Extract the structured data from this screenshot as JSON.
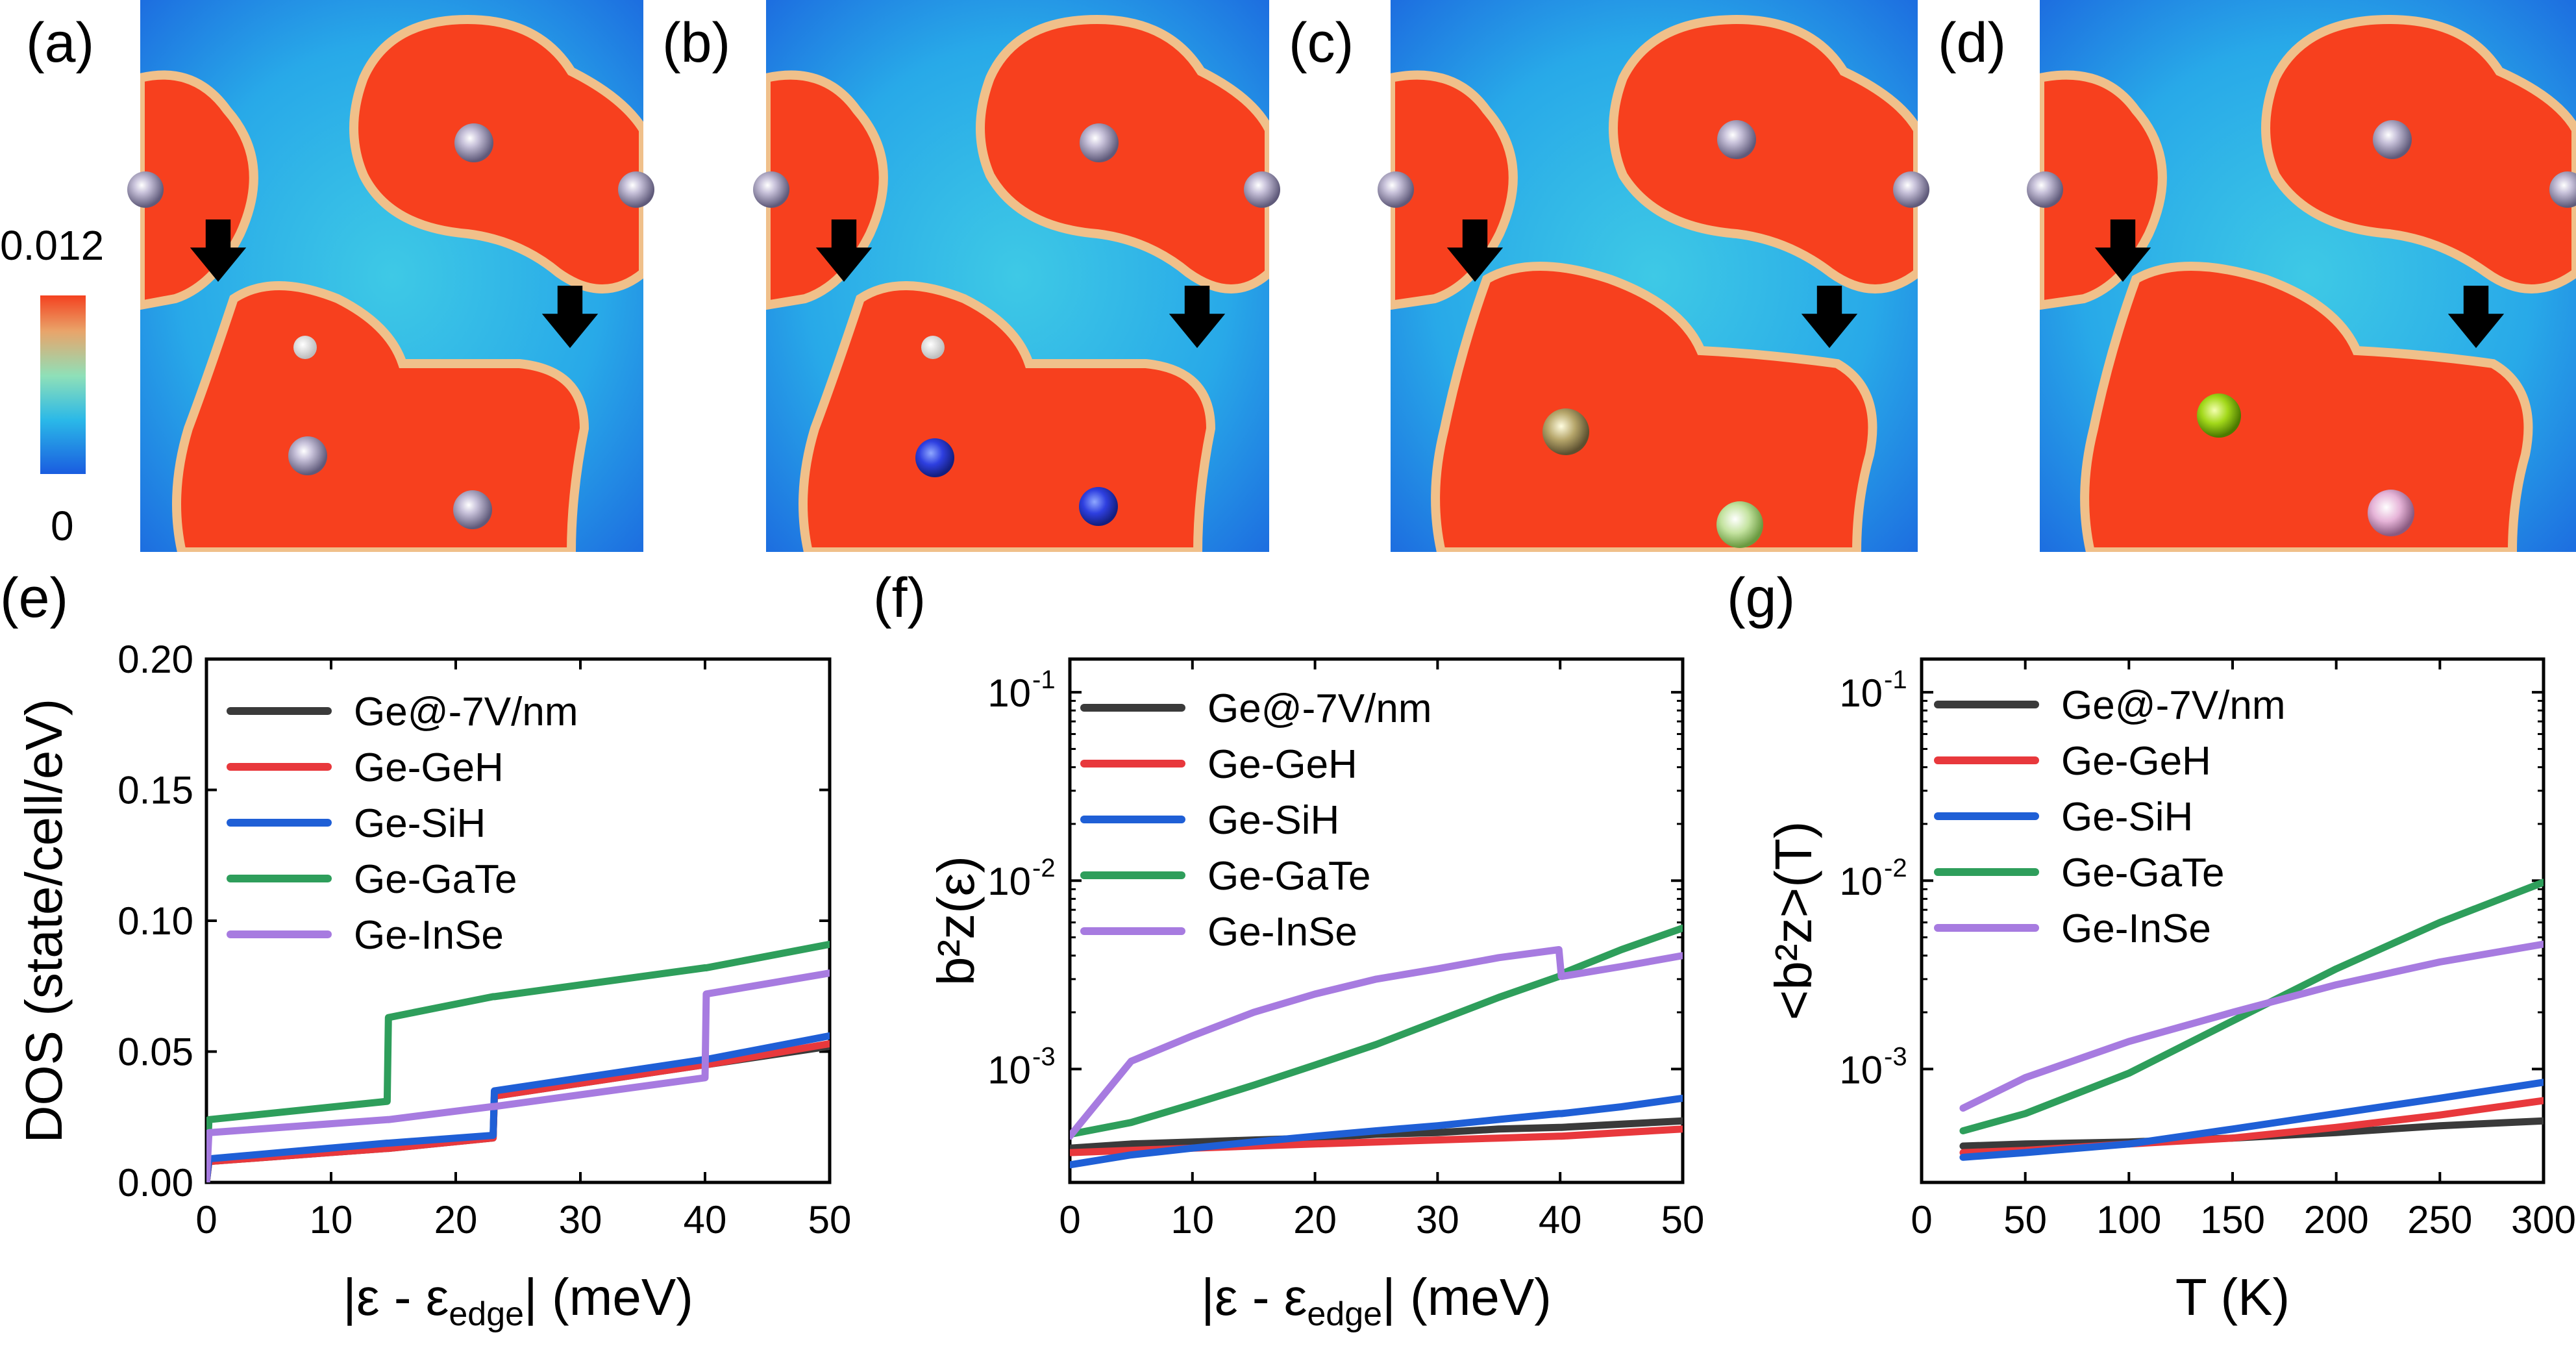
{
  "figure": {
    "maps": [
      {
        "label": "(a)"
      },
      {
        "label": "(b)"
      },
      {
        "label": "(c)"
      },
      {
        "label": "(d)"
      }
    ],
    "colorbar": {
      "max_label": "0.012",
      "min_label": "0"
    }
  },
  "chart_data": [
    {
      "type": "line",
      "panel_label": "(e)",
      "ylabel": "DOS (state/cell/eV)",
      "xlabel_parts": [
        "|ε - ε",
        "edge",
        "| (meV)"
      ],
      "xlim": [
        0,
        50
      ],
      "ylim": [
        0,
        0.2
      ],
      "xticks": [
        "0",
        "10",
        "20",
        "30",
        "40",
        "50"
      ],
      "yticks": [
        "0.00",
        "0.05",
        "0.10",
        "0.15",
        "0.20"
      ],
      "x": [
        0,
        0.2,
        14.5,
        14.6,
        23,
        23.1,
        40,
        40.1,
        50
      ],
      "series": [
        {
          "name": "Ge@-7V/nm",
          "color": "#3a3a3a",
          "values": [
            0,
            0.008,
            0.013,
            0.013,
            0.017,
            0.033,
            0.045,
            0.045,
            0.052
          ]
        },
        {
          "name": "Ge-GeH",
          "color": "#e8383c",
          "values": [
            0,
            0.008,
            0.013,
            0.013,
            0.017,
            0.033,
            0.045,
            0.045,
            0.053
          ]
        },
        {
          "name": "Ge-SiH",
          "color": "#1f5fd6",
          "values": [
            0,
            0.009,
            0.015,
            0.015,
            0.018,
            0.035,
            0.047,
            0.047,
            0.056
          ]
        },
        {
          "name": "Ge-GaTe",
          "color": "#2e9e5b",
          "values": [
            0,
            0.024,
            0.031,
            0.063,
            0.071,
            0.071,
            0.082,
            0.082,
            0.091
          ]
        },
        {
          "name": "Ge-InSe",
          "color": "#a77be0",
          "values": [
            0,
            0.019,
            0.024,
            0.024,
            0.029,
            0.029,
            0.04,
            0.072,
            0.08
          ]
        }
      ]
    },
    {
      "type": "line",
      "panel_label": "(f)",
      "ylabel": "b²z(ε)",
      "xlabel_parts": [
        "|ε - ε",
        "edge",
        "| (meV)"
      ],
      "yscale": "log",
      "xlim": [
        0,
        50
      ],
      "ylim": [
        0.00025,
        0.15
      ],
      "xticks": [
        "0",
        "10",
        "20",
        "30",
        "40",
        "50"
      ],
      "yticks": [
        "10",
        "10",
        "10"
      ],
      "ytick_exponents": [
        "-3",
        "-2",
        "-1"
      ],
      "x": [
        0,
        5,
        10,
        15,
        20,
        25,
        30,
        35,
        39.9,
        40.1,
        45,
        50
      ],
      "series": [
        {
          "name": "Ge@-7V/nm",
          "color": "#3a3a3a",
          "values": [
            0.00038,
            0.0004,
            0.00041,
            0.00042,
            0.00043,
            0.00045,
            0.00046,
            0.00048,
            0.00049,
            0.00049,
            0.00051,
            0.00053
          ]
        },
        {
          "name": "Ge-GeH",
          "color": "#e8383c",
          "values": [
            0.00036,
            0.00037,
            0.00038,
            0.00039,
            0.0004,
            0.00041,
            0.00042,
            0.00043,
            0.00044,
            0.00044,
            0.00046,
            0.00048
          ]
        },
        {
          "name": "Ge-SiH",
          "color": "#1f5fd6",
          "values": [
            0.00031,
            0.00035,
            0.00038,
            0.00041,
            0.00044,
            0.00047,
            0.0005,
            0.00054,
            0.00058,
            0.00058,
            0.00063,
            0.0007
          ]
        },
        {
          "name": "Ge-GaTe",
          "color": "#2e9e5b",
          "values": [
            0.00045,
            0.00052,
            0.00065,
            0.00082,
            0.00105,
            0.00135,
            0.0018,
            0.0024,
            0.0031,
            0.0032,
            0.0043,
            0.0056
          ]
        },
        {
          "name": "Ge-InSe",
          "color": "#a77be0",
          "values": [
            0.00044,
            0.0011,
            0.0015,
            0.002,
            0.0025,
            0.003,
            0.0034,
            0.0039,
            0.0043,
            0.0031,
            0.0035,
            0.004
          ]
        }
      ]
    },
    {
      "type": "line",
      "panel_label": "(g)",
      "ylabel": "<b²z>(T)",
      "xlabel": "T (K)",
      "yscale": "log",
      "xlim": [
        0,
        300
      ],
      "ylim": [
        0.00025,
        0.15
      ],
      "xticks": [
        "0",
        "50",
        "100",
        "150",
        "200",
        "250",
        "300"
      ],
      "yticks": [
        "10",
        "10",
        "10"
      ],
      "ytick_exponents": [
        "-3",
        "-2",
        "-1"
      ],
      "x": [
        20,
        50,
        100,
        150,
        200,
        250,
        300
      ],
      "series": [
        {
          "name": "Ge@-7V/nm",
          "color": "#3a3a3a",
          "values": [
            0.00039,
            0.0004,
            0.00041,
            0.00043,
            0.00046,
            0.0005,
            0.00053
          ]
        },
        {
          "name": "Ge-GeH",
          "color": "#e8383c",
          "values": [
            0.00036,
            0.00037,
            0.0004,
            0.00043,
            0.00049,
            0.00057,
            0.00068
          ]
        },
        {
          "name": "Ge-SiH",
          "color": "#1f5fd6",
          "values": [
            0.00034,
            0.00036,
            0.0004,
            0.00048,
            0.00058,
            0.0007,
            0.00085
          ]
        },
        {
          "name": "Ge-GaTe",
          "color": "#2e9e5b",
          "values": [
            0.00047,
            0.00058,
            0.00095,
            0.0018,
            0.0034,
            0.006,
            0.0098
          ]
        },
        {
          "name": "Ge-InSe",
          "color": "#a77be0",
          "values": [
            0.00062,
            0.0009,
            0.0014,
            0.002,
            0.0028,
            0.0037,
            0.0046
          ]
        }
      ]
    }
  ]
}
